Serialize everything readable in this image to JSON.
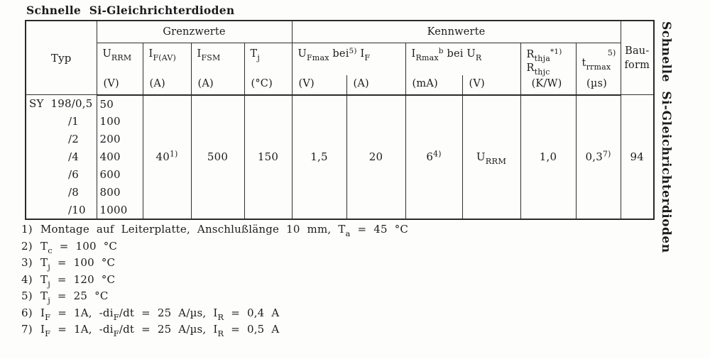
{
  "page": {
    "title": "Schnelle Si-Gleichrichterdioden",
    "side_title": "Schnelle Si-Gleichrichterdioden"
  },
  "table": {
    "header": {
      "typ": "Typ",
      "grenzwerte": "Grenzwerte",
      "kennwerte": "Kennwerte",
      "bauform_line1": "Bau-",
      "bauform_line2": "form",
      "cols": {
        "urrm": {
          "sym": [
            {
              "t": "U"
            },
            {
              "sub": "RRM"
            }
          ],
          "unit": "(V)"
        },
        "ifav": {
          "sym": [
            {
              "t": "I"
            },
            {
              "sub": "F(AV)"
            }
          ],
          "unit": "(A)"
        },
        "ifsm": {
          "sym": [
            {
              "t": "I"
            },
            {
              "sub": "FSM"
            }
          ],
          "unit": "(A)"
        },
        "tj": {
          "sym": [
            {
              "t": "T"
            },
            {
              "sub": "j"
            }
          ],
          "unit": "(°C)"
        },
        "ufmax_if": {
          "sym": [
            {
              "t": "U"
            },
            {
              "sub": "Fmax"
            },
            {
              "t": " bei"
            },
            {
              "sup": "5)"
            },
            {
              "t": " I"
            },
            {
              "sub": "F"
            }
          ],
          "unit_left": "(V)",
          "unit_right": "(A)"
        },
        "irmax_ur": {
          "sym": [
            {
              "t": "I"
            },
            {
              "sub": "Rmax"
            },
            {
              "sup": "b"
            },
            {
              "t": " bei U"
            },
            {
              "sub": "R"
            }
          ],
          "unit_left": "(mA)",
          "unit_right": "(V)"
        },
        "rth": {
          "line1": [
            {
              "t": "R"
            },
            {
              "sub": "thja"
            },
            {
              "sup": "*1)"
            }
          ],
          "line2": [
            {
              "t": "R"
            },
            {
              "sub": "thjc"
            }
          ],
          "unit": "(K/W)"
        },
        "trr": {
          "sup_label": "5)",
          "sym": [
            {
              "t": "t"
            },
            {
              "sub": "rrmax"
            }
          ],
          "unit": "(µs)"
        }
      }
    },
    "rows": [
      {
        "typ": "SY  198/0,5",
        "urrm": "50"
      },
      {
        "typ": "/1",
        "urrm": "100"
      },
      {
        "typ": "/2",
        "urrm": "200"
      },
      {
        "typ": "/4",
        "urrm": "400"
      },
      {
        "typ": "/6",
        "urrm": "600"
      },
      {
        "typ": "/8",
        "urrm": "800"
      },
      {
        "typ": "/10",
        "urrm": "1000"
      }
    ],
    "merged": {
      "ifav": [
        {
          "t": "40"
        },
        {
          "sup": "1)"
        }
      ],
      "ifsm": [
        {
          "t": "500"
        }
      ],
      "tj": [
        {
          "t": "150"
        }
      ],
      "ufmax": [
        {
          "t": "1,5"
        }
      ],
      "if": [
        {
          "t": "20"
        }
      ],
      "irmax": [
        {
          "t": "6"
        },
        {
          "sup": "4)"
        }
      ],
      "ur": [
        {
          "t": "U"
        },
        {
          "sub": "RRM"
        }
      ],
      "rth": [
        {
          "t": "1,0"
        }
      ],
      "trr": [
        {
          "t": "0,3"
        },
        {
          "sup": "7)"
        }
      ],
      "bauform": [
        {
          "t": "94"
        }
      ]
    }
  },
  "footnotes": [
    {
      "marker": "1)",
      "text": [
        {
          "t": "Montage auf Leiterplatte, Anschlußlänge 10 mm, T"
        },
        {
          "sub": "a"
        },
        {
          "t": " = 45 °C"
        }
      ]
    },
    {
      "marker": "2)",
      "text": [
        {
          "t": "T"
        },
        {
          "sub": "c"
        },
        {
          "t": " = 100 °C"
        }
      ]
    },
    {
      "marker": "3)",
      "text": [
        {
          "t": "T"
        },
        {
          "sub": "j"
        },
        {
          "t": " = 100 °C"
        }
      ]
    },
    {
      "marker": "4)",
      "text": [
        {
          "t": "T"
        },
        {
          "sub": "j"
        },
        {
          "t": " = 120 °C"
        }
      ]
    },
    {
      "marker": "5)",
      "text": [
        {
          "t": "T"
        },
        {
          "sub": "j"
        },
        {
          "t": " = 25 °C"
        }
      ]
    },
    {
      "marker": "6)",
      "text": [
        {
          "t": "I"
        },
        {
          "sub": "F"
        },
        {
          "t": " = 1A, -di"
        },
        {
          "sub": "F"
        },
        {
          "t": "/dt = 25 A/µs, I"
        },
        {
          "sub": "R"
        },
        {
          "t": " = 0,4 A"
        }
      ]
    },
    {
      "marker": "7)",
      "text": [
        {
          "t": "I"
        },
        {
          "sub": "F"
        },
        {
          "t": " = 1A, -di"
        },
        {
          "sub": "F"
        },
        {
          "t": "/dt = 25 A/µs, I"
        },
        {
          "sub": "R"
        },
        {
          "t": " = 0,5 A"
        }
      ]
    }
  ]
}
